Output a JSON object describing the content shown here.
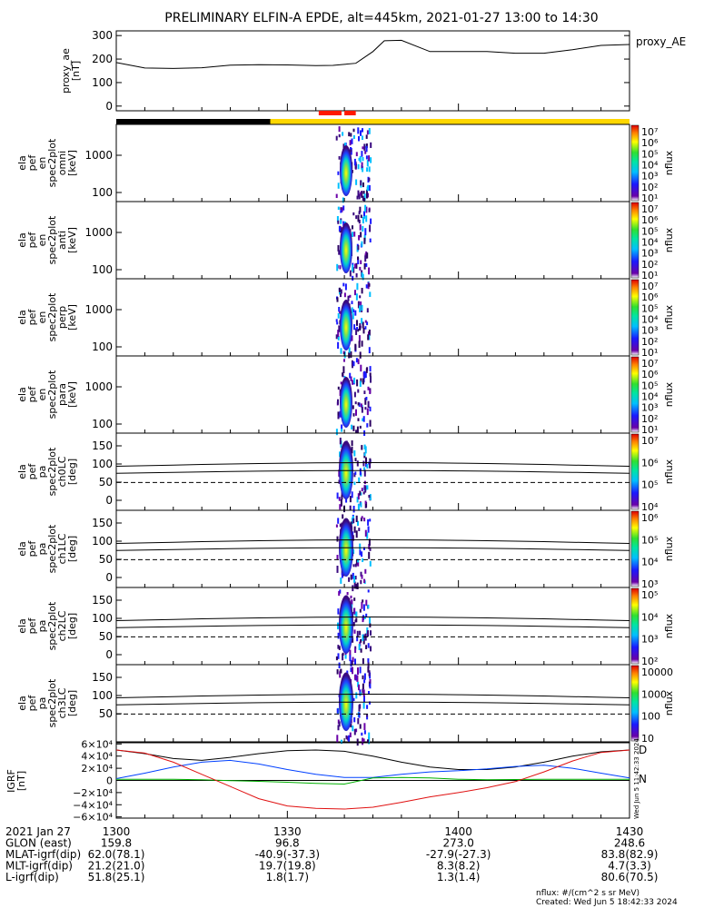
{
  "title": "PRELIMINARY ELFIN-A EPDE, alt=445km, 2021-01-27 13:00 to 14:30",
  "footer": {
    "units_note": "nflux: #/(cm^2 s sr MeV)",
    "created": "Created: Wed Jun  5 18:42:33 2024",
    "side_stamp": "Wed Jun  5 11:42:33 2024"
  },
  "orbit_table": {
    "rows": [
      {
        "label": "2021 Jan 27",
        "values": [
          "1300",
          "1330",
          "1400",
          "1430"
        ]
      },
      {
        "label": "GLON (east)",
        "values": [
          "159.8",
          "96.8",
          "273.0",
          "248.6"
        ]
      },
      {
        "label": "MLAT-igrf(dip)",
        "values": [
          "62.0(78.1)",
          "-40.9(-37.3)",
          "-27.9(-27.3)",
          "83.8(82.9)"
        ]
      },
      {
        "label": "MLT-igrf(dip)",
        "values": [
          "21.2(21.0)",
          "19.7(19.8)",
          "8.3(8.2)",
          "4.7(3.3)"
        ]
      },
      {
        "label": "L-igrf(dip)",
        "values": [
          "51.8(25.1)",
          "1.8(1.7)",
          "1.3(1.4)",
          "80.6(70.5)"
        ]
      }
    ]
  },
  "colors": {
    "ae_line": "#000000",
    "bar_black": "#000000",
    "bar_yellow": "#ffd700",
    "bar_red": "#ff1a00",
    "igrf_x": "#000000",
    "igrf_y": "#0040ff",
    "igrf_z": "#00b000",
    "igrf_total": "#e01010"
  },
  "chart_data": [
    {
      "type": "line",
      "ylabel": "proxy_ae [nT]",
      "legend": "proxy_AE",
      "yticks": [
        "0",
        "100",
        "200",
        "300"
      ],
      "ylim": [
        -20,
        320
      ],
      "x_minutes": [
        0,
        5,
        10,
        15,
        20,
        25,
        30,
        35,
        38,
        42,
        45,
        47,
        50,
        55,
        60,
        65,
        70,
        75,
        80,
        85,
        90
      ],
      "values": [
        185,
        162,
        160,
        163,
        174,
        176,
        175,
        172,
        173,
        182,
        232,
        278,
        280,
        232,
        232,
        232,
        225,
        225,
        240,
        258,
        262
      ]
    },
    {
      "type": "heatmap",
      "panels": [
        {
          "ylabel": "ela pef en spec2plot omni [keV]",
          "colorbar": {
            "label": "nflux",
            "ticks": [
              "10⁷",
              "10⁶",
              "10⁵",
              "10⁴",
              "10³",
              "10²",
              "10¹"
            ]
          },
          "yticks": [
            "1000",
            "100"
          ]
        },
        {
          "ylabel": "ela pef en spec2plot anti [keV]",
          "colorbar": {
            "label": "nflux",
            "ticks": [
              "10⁷",
              "10⁶",
              "10⁵",
              "10⁴",
              "10³",
              "10²",
              "10¹"
            ]
          },
          "yticks": [
            "1000",
            "100"
          ]
        },
        {
          "ylabel": "ela pef en spec2plot perp [keV]",
          "colorbar": {
            "label": "nflux",
            "ticks": [
              "10⁷",
              "10⁶",
              "10⁵",
              "10⁴",
              "10³",
              "10²",
              "10¹"
            ]
          },
          "yticks": [
            "1000",
            "100"
          ]
        },
        {
          "ylabel": "ela pef en spec2plot para [keV]",
          "colorbar": {
            "label": "nflux",
            "ticks": [
              "10⁷",
              "10⁶",
              "10⁵",
              "10⁴",
              "10³",
              "10²",
              "10¹"
            ]
          },
          "yticks": [
            "1000",
            "100"
          ]
        },
        {
          "ylabel": "ela pef pa spec2plot ch0LC [deg]",
          "colorbar": {
            "label": "nflux",
            "ticks": [
              "10⁷",
              "10⁶",
              "10⁵",
              "10⁴"
            ]
          },
          "yticks": [
            "150",
            "100",
            "50",
            "0"
          ]
        },
        {
          "ylabel": "ela pef pa spec2plot ch1LC [deg]",
          "colorbar": {
            "label": "nflux",
            "ticks": [
              "10⁶",
              "10⁵",
              "10⁴",
              "10³"
            ]
          },
          "yticks": [
            "150",
            "100",
            "50",
            "0"
          ]
        },
        {
          "ylabel": "ela pef pa spec2plot ch2LC [deg]",
          "colorbar": {
            "label": "nflux",
            "ticks": [
              "10⁵",
              "10⁴",
              "10³",
              "10²"
            ]
          },
          "yticks": [
            "150",
            "100",
            "50",
            "0"
          ]
        },
        {
          "ylabel": "ela pef pa spec2plot ch3LC [deg]",
          "colorbar": {
            "label": "nflux",
            "ticks": [
              "10000",
              "1000",
              "100",
              "10"
            ]
          },
          "yticks": [
            "150",
            "100",
            "50"
          ]
        }
      ]
    },
    {
      "type": "line",
      "ylabel": "IGRF [nT]",
      "yticks": [
        "6×10⁴",
        "4×10⁴",
        "2×10⁴",
        "0",
        "−2×10⁴",
        "−4×10⁴",
        "−6×10⁴"
      ],
      "ylim": [
        -62000,
        62000
      ],
      "legend": [
        "D",
        "N"
      ],
      "x_minutes": [
        0,
        5,
        10,
        15,
        20,
        25,
        30,
        35,
        40,
        45,
        50,
        55,
        60,
        65,
        70,
        75,
        80,
        85,
        90
      ],
      "series": [
        {
          "values": [
            50000,
            44000,
            36000,
            33000,
            38000,
            44000,
            49000,
            50000,
            48000,
            40000,
            30000,
            22000,
            18000,
            18000,
            22000,
            30000,
            40000,
            47000,
            50000
          ]
        },
        {
          "values": [
            3000,
            12000,
            22000,
            30000,
            33000,
            27000,
            18000,
            10000,
            5000,
            5000,
            10000,
            14000,
            16000,
            19000,
            23000,
            25000,
            20000,
            12000,
            4000
          ]
        },
        {
          "values": [
            2000,
            2000,
            2000,
            1000,
            -500,
            -1500,
            -3000,
            -5000,
            -6000,
            4000,
            5000,
            4000,
            2000,
            1000,
            1500,
            2000,
            2000,
            2000,
            2000
          ]
        },
        {
          "values": [
            50000,
            45000,
            30000,
            10000,
            -10000,
            -30000,
            -42000,
            -46000,
            -47000,
            -44000,
            -36000,
            -27000,
            -20000,
            -12000,
            -2000,
            14000,
            32000,
            46000,
            50000
          ]
        }
      ]
    }
  ]
}
